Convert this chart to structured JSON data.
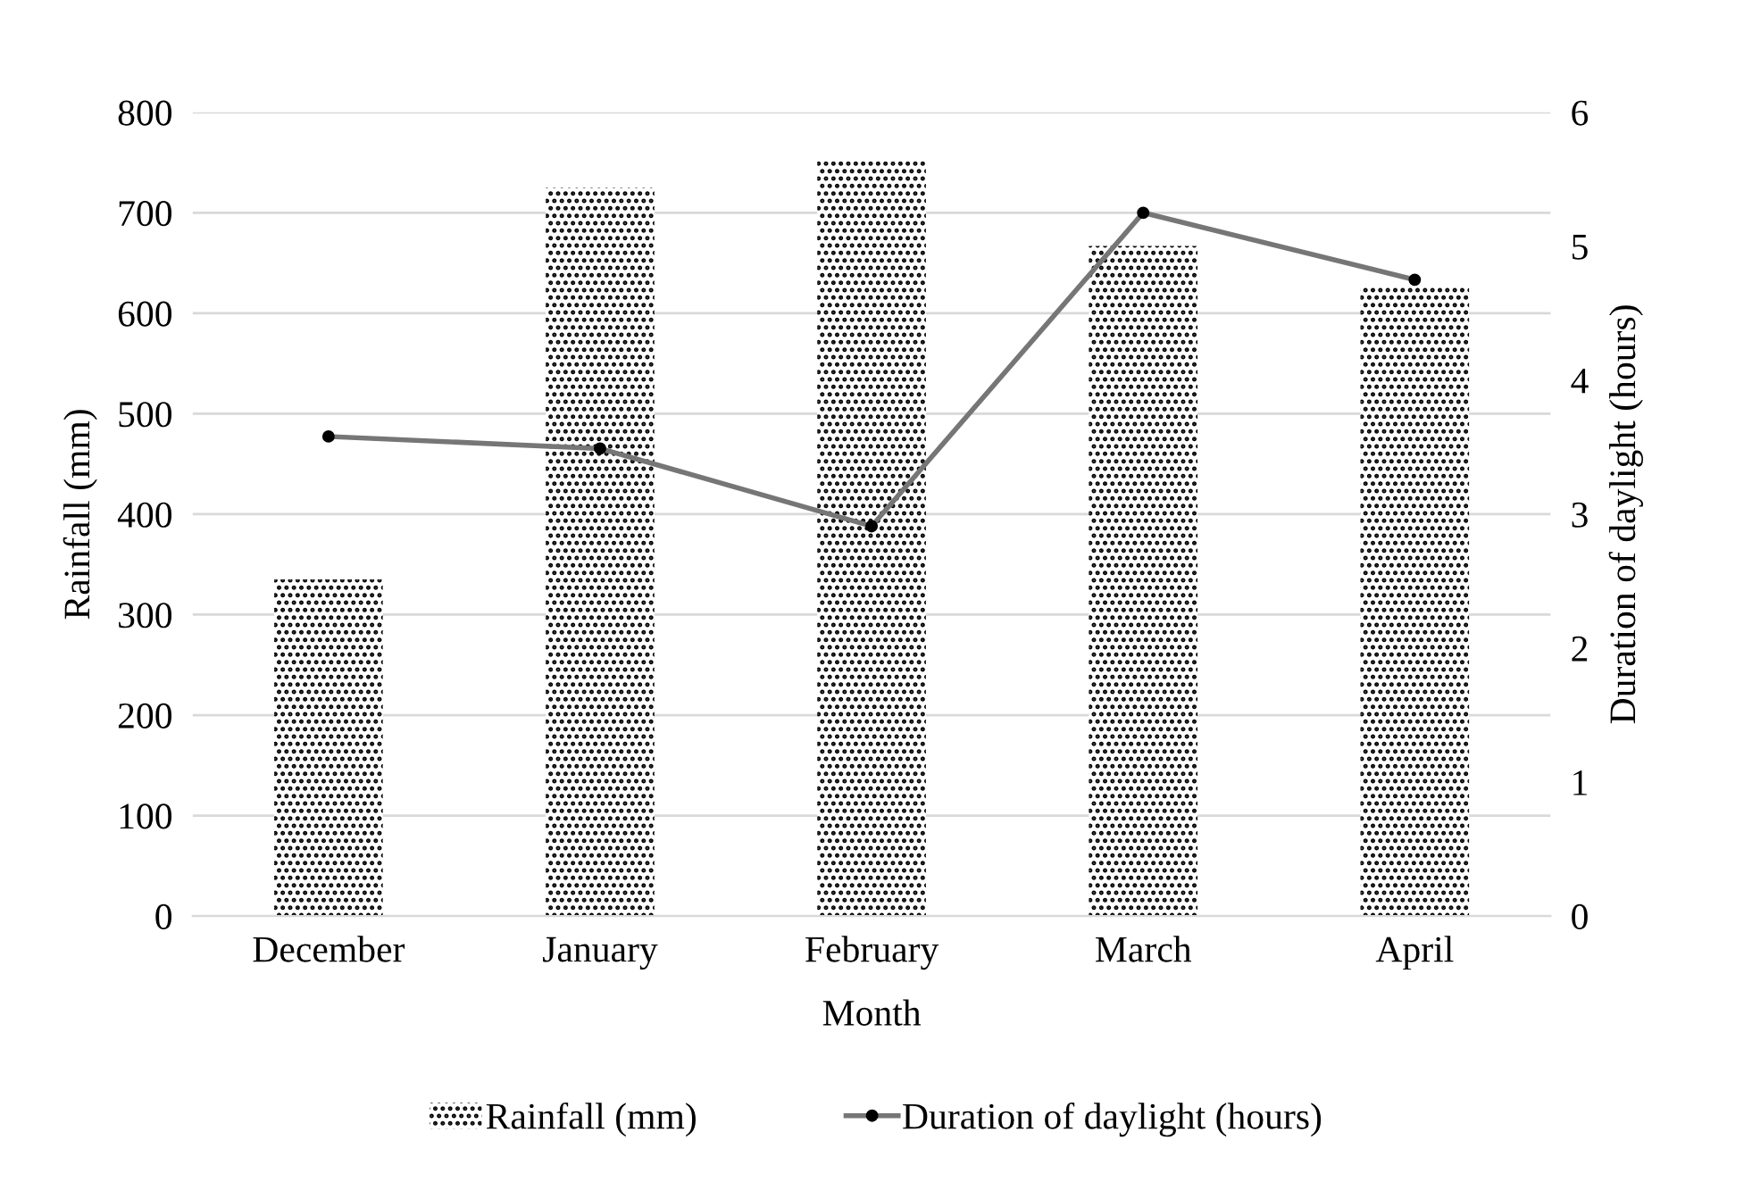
{
  "chart_data": {
    "type": "bar",
    "xlabel": "Month",
    "ylabel": "Rainfall (mm)",
    "y2label": "Duration of daylight (hours)",
    "categories": [
      "December",
      "January",
      "February",
      "March",
      "April"
    ],
    "series": [
      {
        "name": "Rainfall (mm)",
        "color": "#000000",
        "values": [
          335,
          725,
          751,
          667,
          627
        ]
      },
      {
        "name": "Duration of daylight (hours)",
        "type": "line",
        "axis": "y2",
        "color": "#767676",
        "marker": "circle",
        "values": [
          3.58,
          3.49,
          2.91,
          5.25,
          4.75
        ]
      }
    ],
    "ylim": [
      0,
      800
    ],
    "yticks": [
      0,
      100,
      200,
      300,
      400,
      500,
      600,
      700,
      800
    ],
    "y2lim": [
      0,
      6
    ],
    "y2ticks": [
      0,
      1,
      2,
      3,
      4,
      5,
      6
    ],
    "grid": "y",
    "legend": "bottom"
  }
}
